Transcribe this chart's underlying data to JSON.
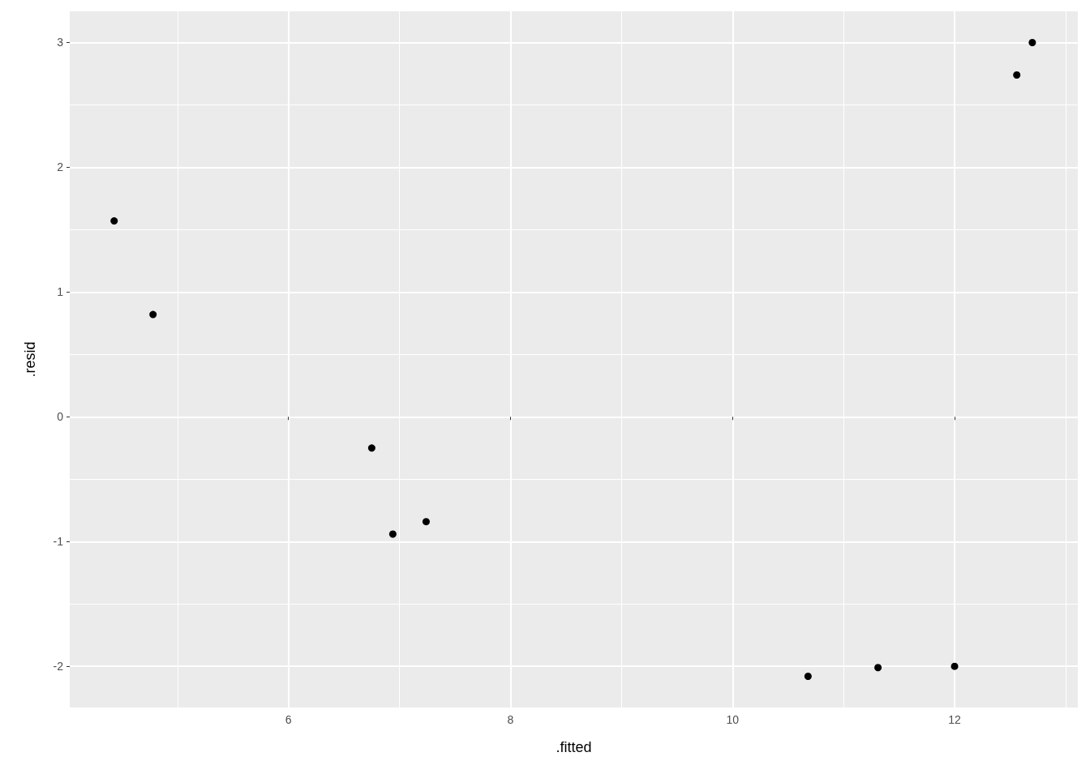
{
  "chart_data": {
    "type": "scatter",
    "xlabel": ".fitted",
    "ylabel": ".resid",
    "x": [
      4.43,
      4.78,
      6.75,
      6.94,
      7.24,
      10.68,
      11.31,
      12.0,
      12.56,
      12.7
    ],
    "values": [
      1.57,
      0.82,
      -0.25,
      -0.94,
      -0.84,
      -2.08,
      -2.01,
      -2.0,
      2.74,
      3.0
    ],
    "color": "#000000",
    "marker": "circle",
    "xlim": [
      4.03,
      13.11
    ],
    "ylim": [
      -2.33,
      3.25
    ],
    "xticks": [
      6,
      8,
      10,
      12
    ],
    "yticks": [
      -2,
      -1,
      0,
      1,
      2,
      3
    ],
    "grid": true
  }
}
